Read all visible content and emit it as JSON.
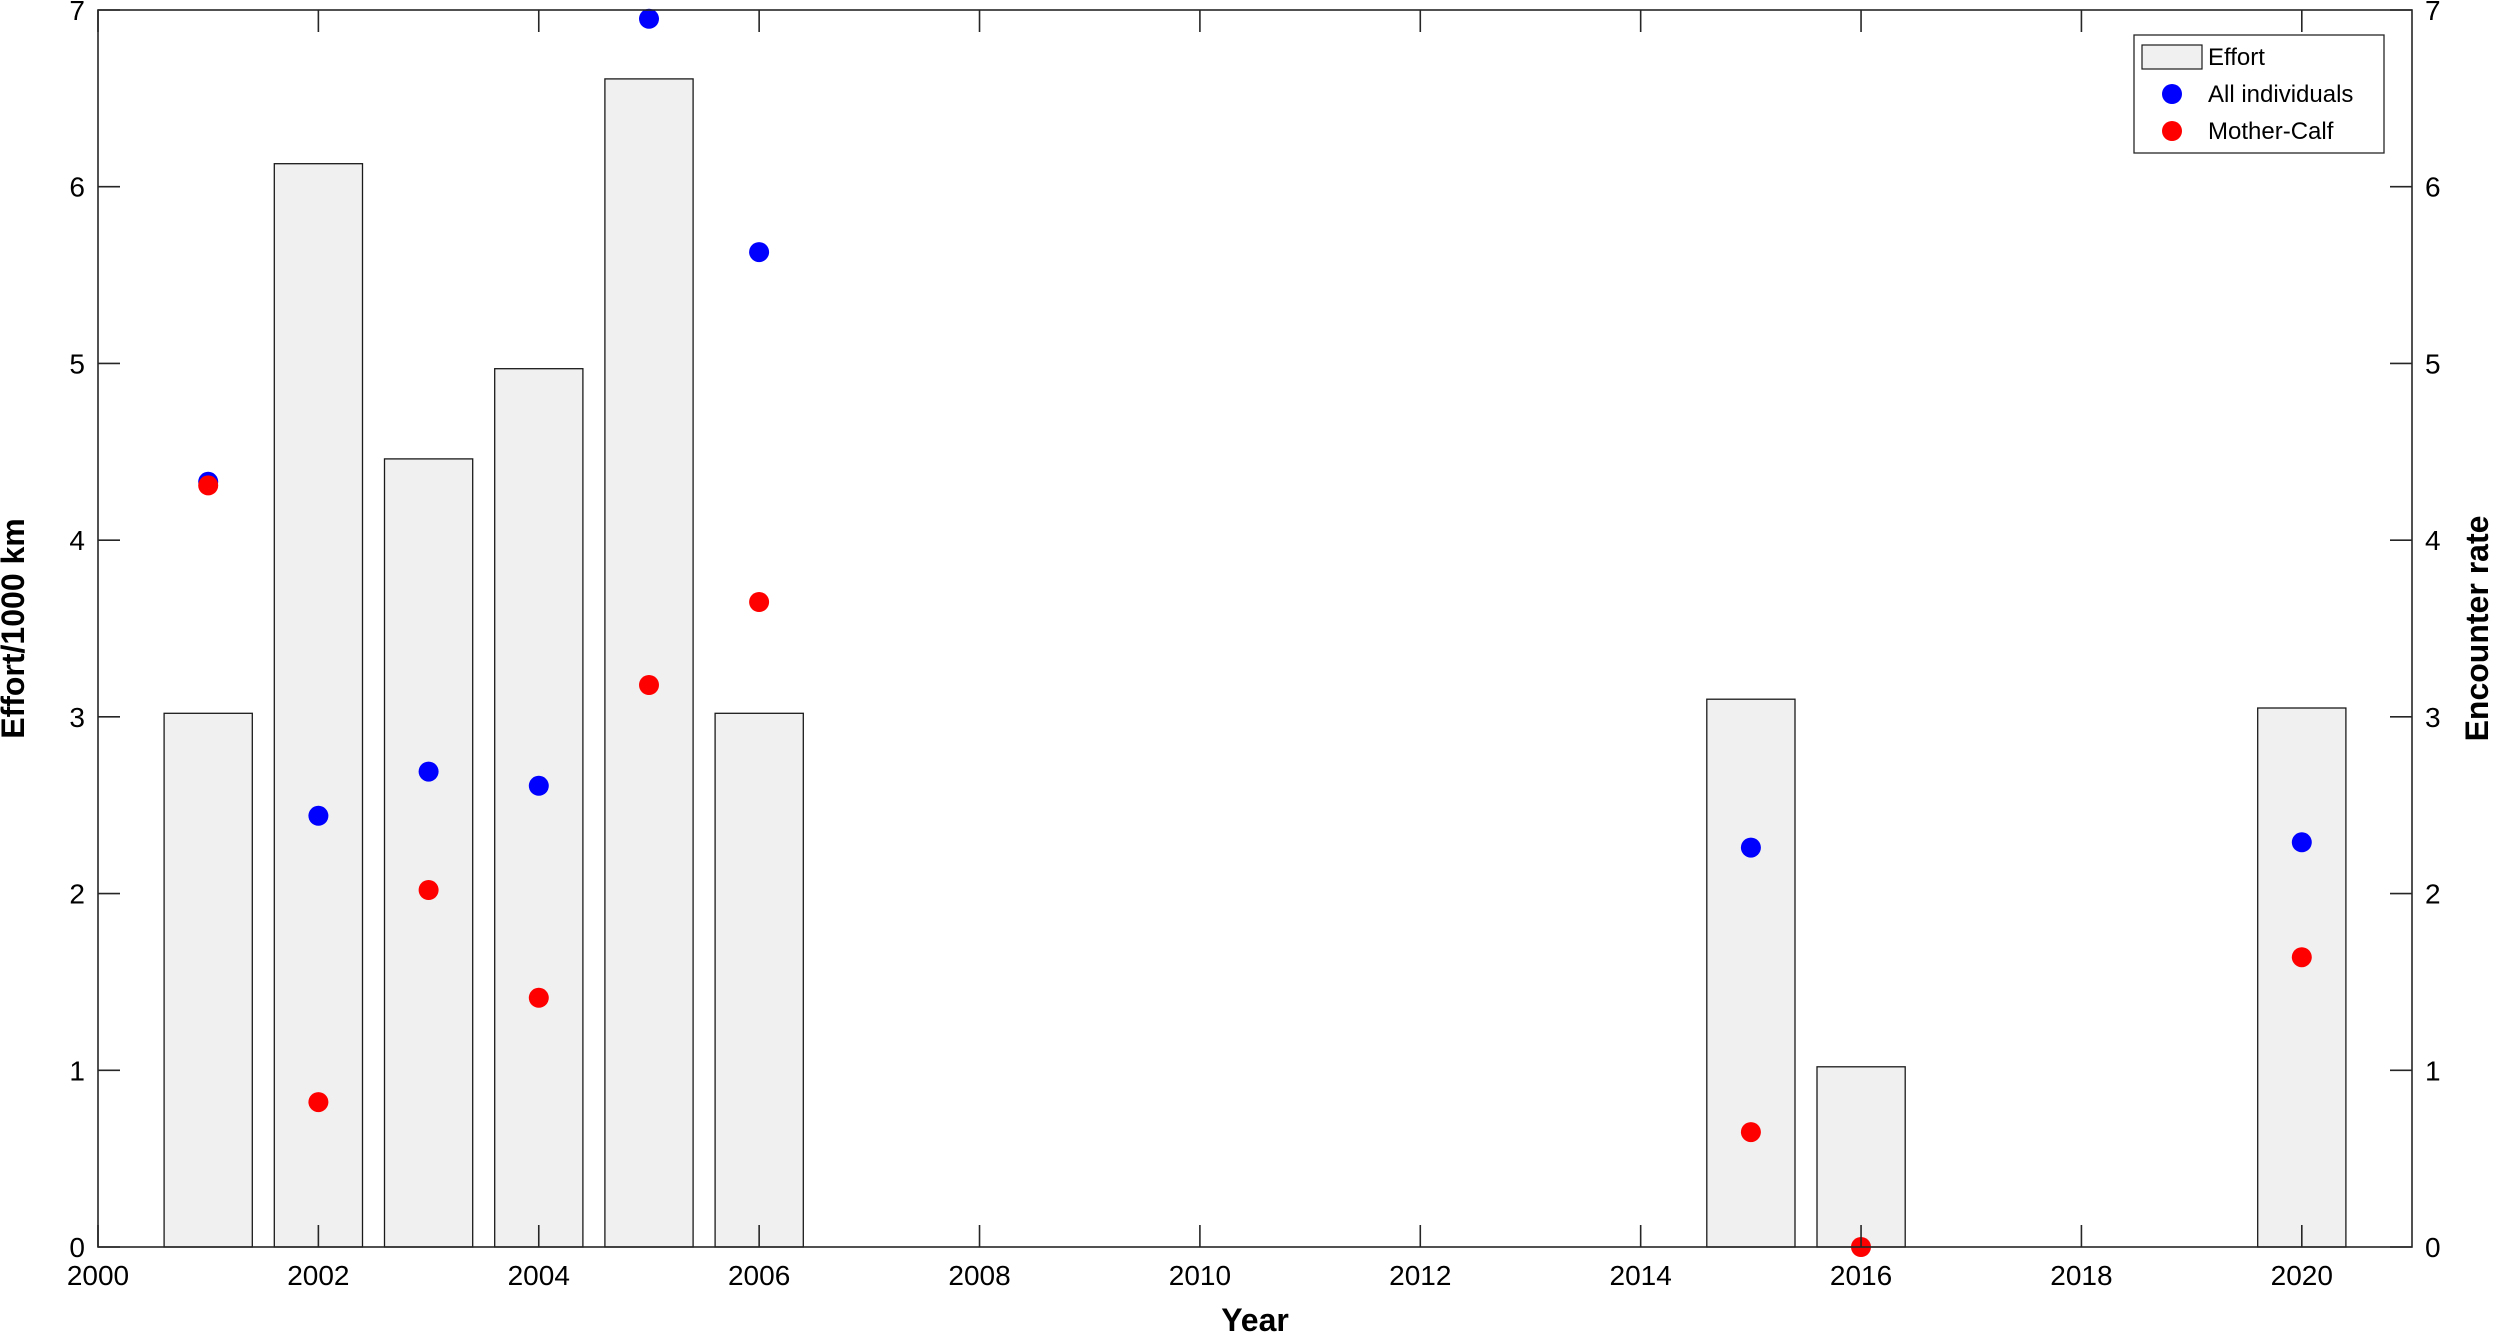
{
  "chart_data": {
    "type": "bar",
    "xlabel": "Year",
    "ylabel_left": "Effort/1000 km",
    "ylabel_right": "Encounter rate",
    "xlim": [
      2000,
      2021
    ],
    "ylim_left": [
      0,
      7
    ],
    "ylim_right": [
      0,
      7
    ],
    "xticks": [
      "2000",
      "2002",
      "2004",
      "2006",
      "2008",
      "2010",
      "2012",
      "2014",
      "2016",
      "2018",
      "2020"
    ],
    "yticks_left": [
      "0",
      "1",
      "2",
      "3",
      "4",
      "5",
      "6",
      "7"
    ],
    "yticks_right": [
      "0",
      "1",
      "2",
      "3",
      "4",
      "5",
      "6",
      "7"
    ],
    "grid": false,
    "legend_position": "top-right",
    "series": [
      {
        "name": "Effort",
        "kind": "bar",
        "color": "#f0f0f0",
        "x": [
          2001,
          2002,
          2003,
          2004,
          2005,
          2006,
          2015,
          2016,
          2020
        ],
        "values": [
          3.02,
          6.13,
          4.46,
          4.97,
          6.61,
          3.02,
          3.1,
          1.02,
          3.05
        ]
      },
      {
        "name": "All individuals",
        "kind": "scatter",
        "color": "#0000ff",
        "x": [
          2001,
          2002,
          2003,
          2004,
          2005,
          2006,
          2015,
          2020
        ],
        "values": [
          4.33,
          2.44,
          2.69,
          2.61,
          6.95,
          5.63,
          2.26,
          2.29
        ]
      },
      {
        "name": "Mother-Calf",
        "kind": "scatter",
        "color": "#ff0000",
        "x": [
          2001,
          2002,
          2003,
          2004,
          2005,
          2006,
          2015,
          2016,
          2020
        ],
        "values": [
          4.31,
          0.82,
          2.02,
          1.41,
          3.18,
          3.65,
          0.65,
          0.0,
          1.64
        ]
      }
    ]
  }
}
